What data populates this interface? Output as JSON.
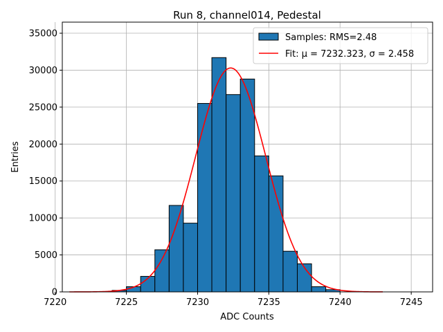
{
  "chart_data": {
    "type": "bar",
    "title": "Run 8, channel014, Pedestal",
    "xlabel": "ADC Counts",
    "ylabel": "Entries",
    "xlim": [
      7220.5,
      7246.5
    ],
    "ylim": [
      0,
      36500
    ],
    "xticks": [
      7220,
      7225,
      7230,
      7235,
      7240,
      7245
    ],
    "yticks": [
      0,
      5000,
      10000,
      15000,
      20000,
      25000,
      30000,
      35000
    ],
    "grid": true,
    "legend_position": "top-right",
    "bin_edges": [
      7224,
      7225,
      7226,
      7227,
      7228,
      7229,
      7230,
      7231,
      7232,
      7233,
      7234,
      7235,
      7236,
      7237,
      7238,
      7239,
      7240
    ],
    "series": [
      {
        "name": "Samples: RMS=2.48",
        "kind": "histogram",
        "color": "#1f77b4",
        "values": [
          200,
          700,
          2100,
          5700,
          11700,
          9300,
          25500,
          31700,
          26700,
          28800,
          18400,
          15700,
          5500,
          3800,
          700,
          300
        ]
      },
      {
        "name": "Fit: μ = 7232.323, σ = 2.458",
        "kind": "line",
        "color": "#ff0000",
        "mu": 7232.323,
        "sigma": 2.458,
        "amplitude": 30300,
        "x_range": [
          7221,
          7243
        ]
      }
    ]
  }
}
